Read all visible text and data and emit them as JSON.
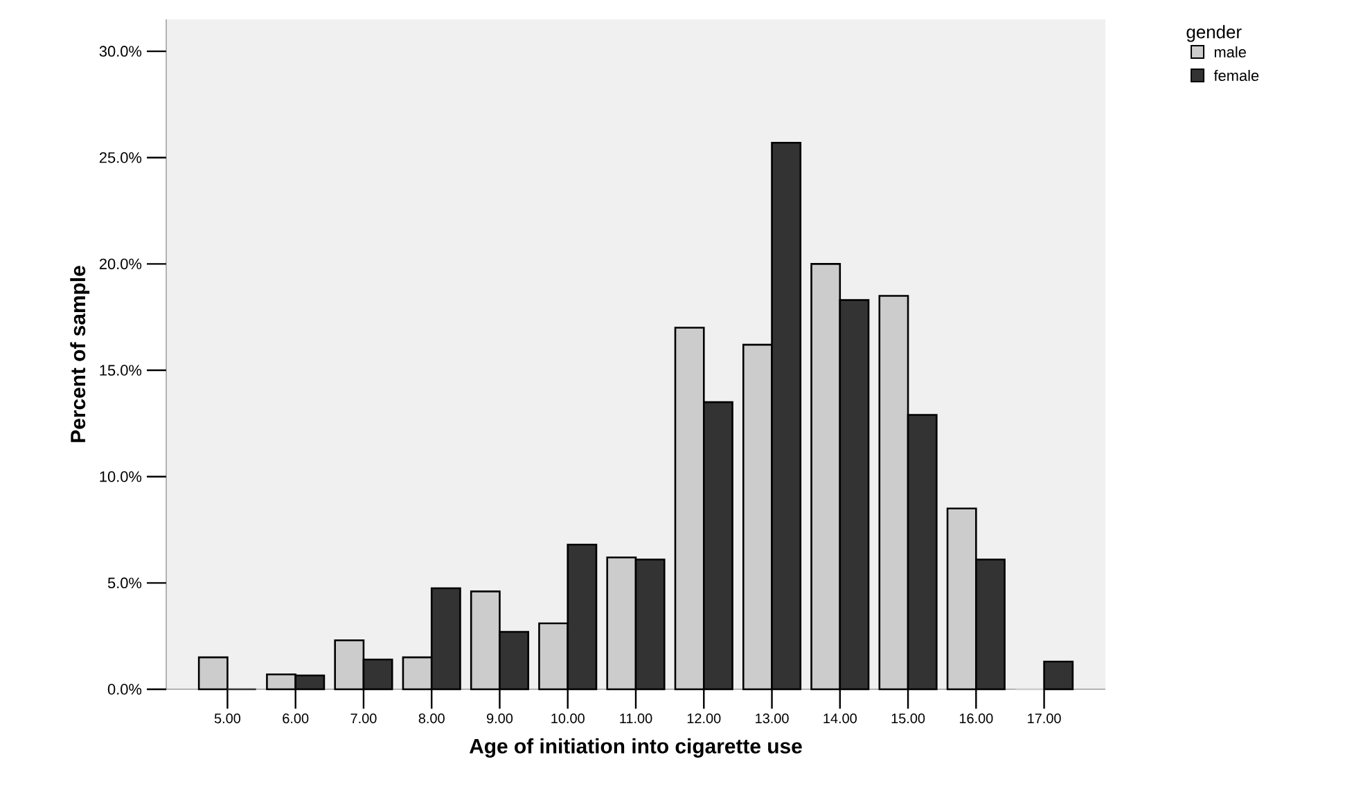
{
  "chart_data": {
    "type": "bar",
    "xlabel": "Age of initiation into cigarette use",
    "ylabel": "Percent of sample",
    "legend_title": "gender",
    "legend": "top right",
    "categories": [
      "5.00",
      "6.00",
      "7.00",
      "8.00",
      "9.00",
      "10.00",
      "11.00",
      "12.00",
      "13.00",
      "14.00",
      "15.00",
      "16.00",
      "17.00"
    ],
    "series": [
      {
        "name": "male",
        "color": "#cccccc",
        "values": [
          1.5,
          0.7,
          2.3,
          1.5,
          4.6,
          3.1,
          6.2,
          17.0,
          16.2,
          20.0,
          18.5,
          8.5,
          0
        ]
      },
      {
        "name": "female",
        "color": "#333333",
        "values": [
          0,
          0.65,
          1.4,
          4.75,
          2.7,
          6.8,
          6.1,
          13.5,
          25.7,
          18.3,
          12.9,
          6.1,
          1.3
        ]
      }
    ],
    "ylim": [
      0,
      31.5
    ],
    "yticks": [
      {
        "value": 0,
        "label": "0.0%"
      },
      {
        "value": 5,
        "label": "5.0%"
      },
      {
        "value": 10,
        "label": "10.0%"
      },
      {
        "value": 15,
        "label": "15.0%"
      },
      {
        "value": 20,
        "label": "20.0%"
      },
      {
        "value": 25,
        "label": "25.0%"
      },
      {
        "value": 30,
        "label": "30.0%"
      }
    ]
  }
}
